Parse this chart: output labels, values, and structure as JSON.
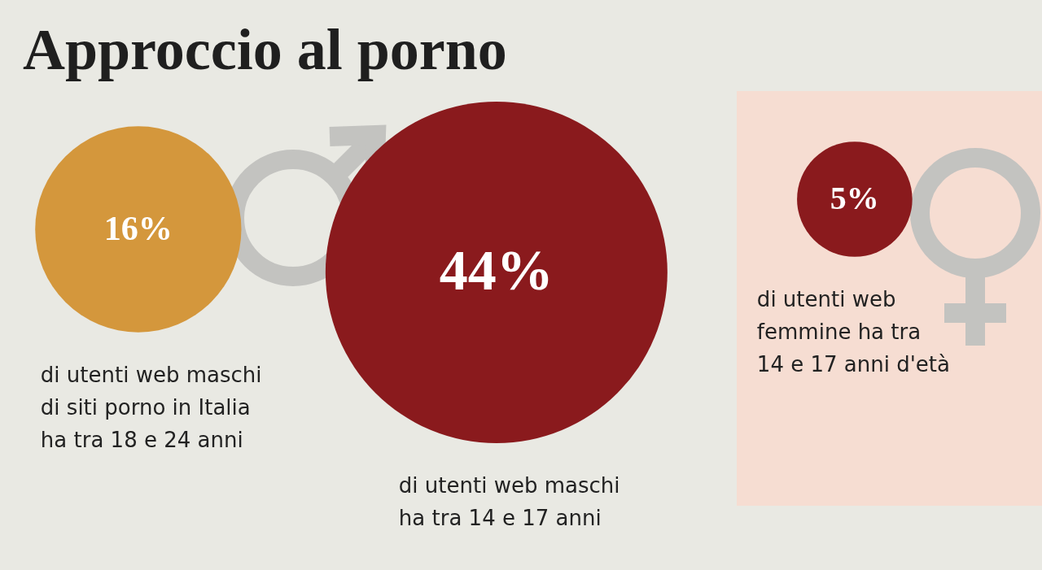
{
  "chart_data": {
    "type": "other",
    "title": "Approccio al porno",
    "categories": [
      "di utenti web maschi\ndi siti porno in Italia\nha tra 18 e 24 anni",
      "di utenti web maschi\nha tra 14 e 17 anni",
      "di utenti web\nfemmine ha tra\n14 e 17 anni d'età"
    ],
    "values": [
      16,
      44,
      5
    ],
    "value_labels": [
      "16%",
      "44%",
      "5%"
    ],
    "colors": [
      "#d4973c",
      "#8a1a1d",
      "#8a1a1d"
    ]
  }
}
